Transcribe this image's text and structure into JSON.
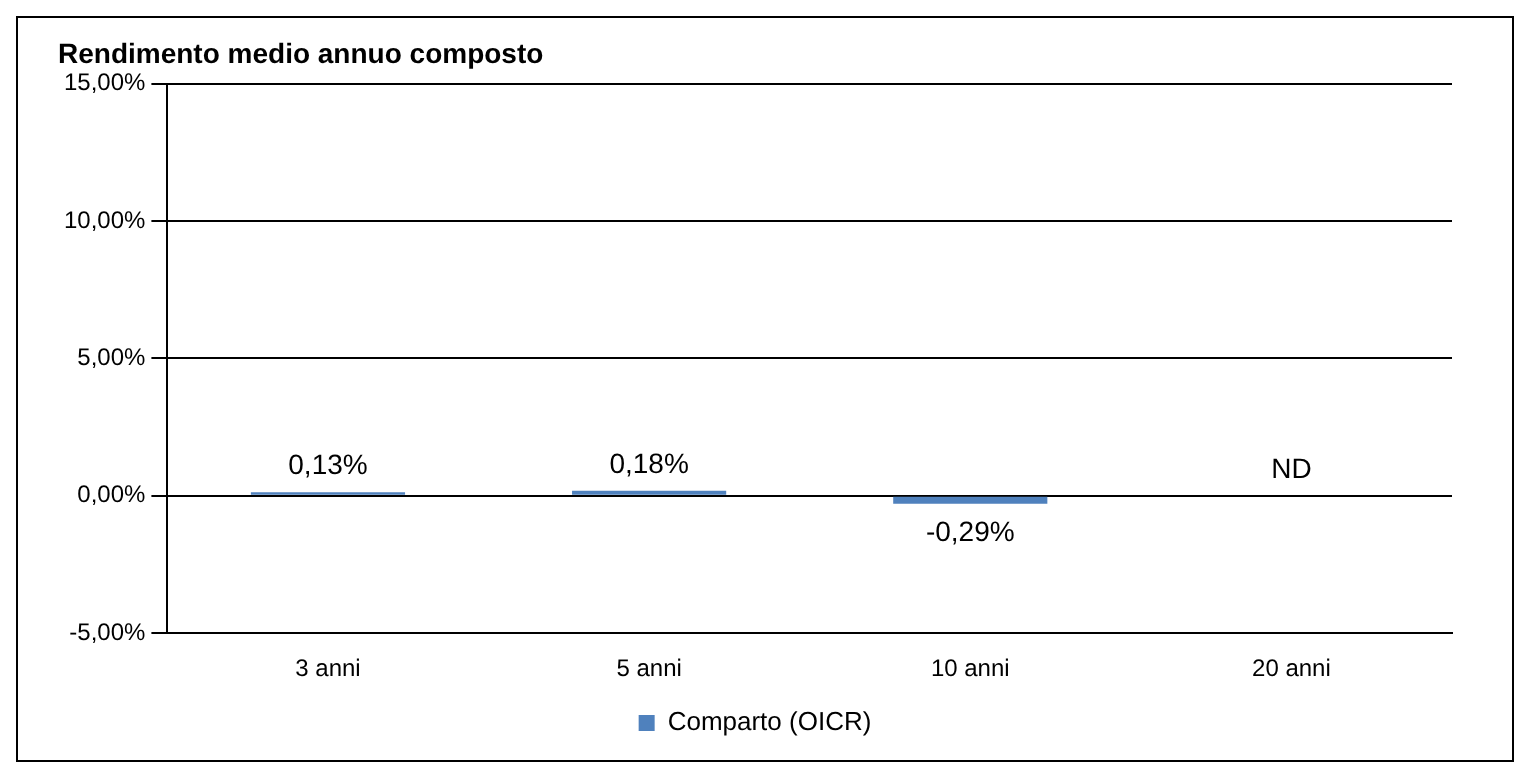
{
  "chart_data": {
    "type": "bar",
    "title": "Rendimento medio annuo composto",
    "categories": [
      "3 anni",
      "5 anni",
      "10 anni",
      "20 anni"
    ],
    "series": [
      {
        "name": "Comparto (OICR)",
        "color": "#4f81bd",
        "values": [
          0.13,
          0.18,
          -0.29,
          null
        ],
        "value_labels": [
          "0,13%",
          "0,18%",
          "-0,29%",
          "ND"
        ]
      }
    ],
    "ylim": [
      -5,
      15
    ],
    "yticks": [
      {
        "value": -5,
        "label": "-5,00%"
      },
      {
        "value": 0,
        "label": "0,00%"
      },
      {
        "value": 5,
        "label": "5,00%"
      },
      {
        "value": 10,
        "label": "10,00%"
      },
      {
        "value": 15,
        "label": "15,00%"
      }
    ],
    "grid": "y",
    "legend": "bottom"
  }
}
